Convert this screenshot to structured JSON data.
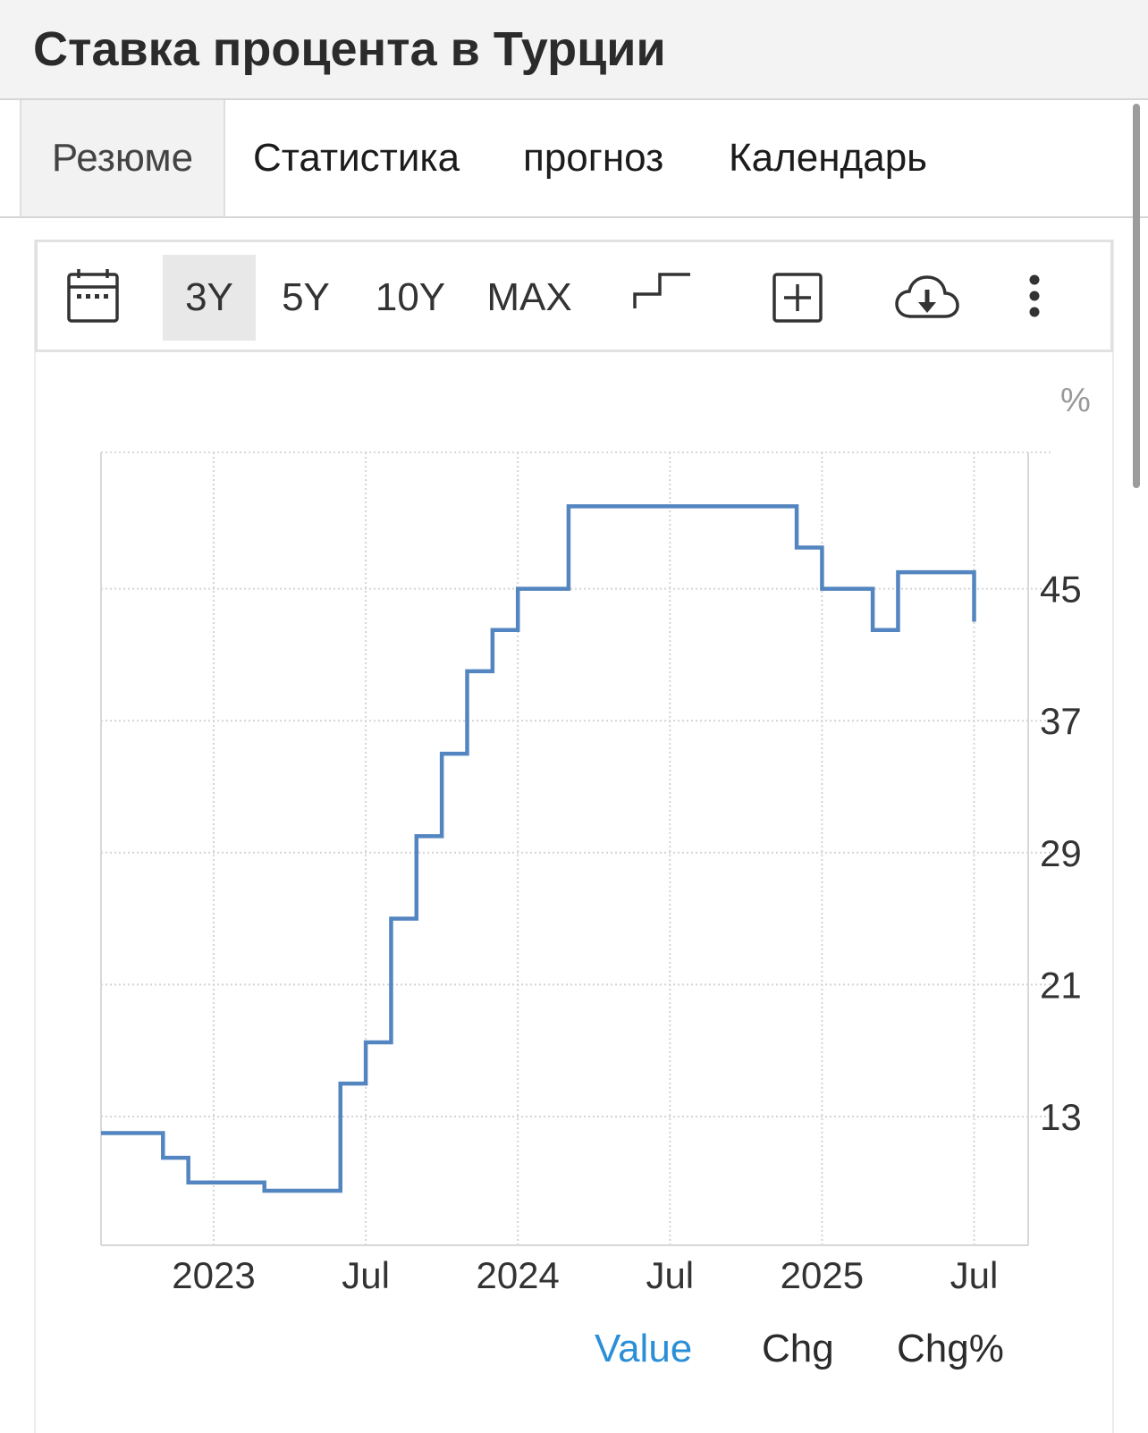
{
  "header": {
    "title": "Ставка процента в Турции"
  },
  "tabs": [
    {
      "label": "Резюме",
      "active": true
    },
    {
      "label": "Статистика",
      "active": false
    },
    {
      "label": "прогноз",
      "active": false
    },
    {
      "label": "Календарь",
      "active": false
    }
  ],
  "toolbar": {
    "ranges": [
      "3Y",
      "5Y",
      "10Y",
      "MAX"
    ],
    "selected_range": "3Y",
    "icons": [
      "calendar-icon",
      "step-chart-icon",
      "add-compare-icon",
      "cloud-download-icon",
      "more-vertical-icon"
    ]
  },
  "chart_data": {
    "type": "line",
    "step": true,
    "unit_label": "%",
    "y_ticks": [
      13,
      21,
      29,
      37,
      45
    ],
    "x_ticks": [
      "2023",
      "Jul",
      "2024",
      "Jul",
      "2025",
      "Jul"
    ],
    "grid": true,
    "line_color": "#5385c0",
    "series": [
      {
        "x": [
          "2022-09",
          "2022-10",
          "2022-11",
          "2022-12",
          "2023-01",
          "2023-02",
          "2023-03",
          "2023-04",
          "2023-05",
          "2023-06",
          "2023-07",
          "2023-08",
          "2023-09",
          "2023-10",
          "2023-11",
          "2023-12",
          "2024-01",
          "2024-02",
          "2024-03",
          "2024-04",
          "2024-05",
          "2024-06",
          "2024-07",
          "2024-08",
          "2024-09",
          "2024-10",
          "2024-11",
          "2024-12",
          "2025-01",
          "2025-02",
          "2025-03",
          "2025-04",
          "2025-05",
          "2025-06",
          "2025-07"
        ],
        "values": [
          12,
          12,
          10.5,
          9,
          9,
          9,
          8.5,
          8.5,
          8.5,
          15,
          17.5,
          25,
          30,
          35,
          40,
          42.5,
          45,
          45,
          50,
          50,
          50,
          50,
          50,
          50,
          50,
          50,
          50,
          47.5,
          45,
          45,
          42.5,
          46,
          46,
          46,
          43
        ]
      }
    ]
  },
  "legend": {
    "items": [
      {
        "label": "Value",
        "active": true
      },
      {
        "label": "Chg",
        "active": false
      },
      {
        "label": "Chg%",
        "active": false
      }
    ],
    "active_color": "#2b8fd8"
  }
}
